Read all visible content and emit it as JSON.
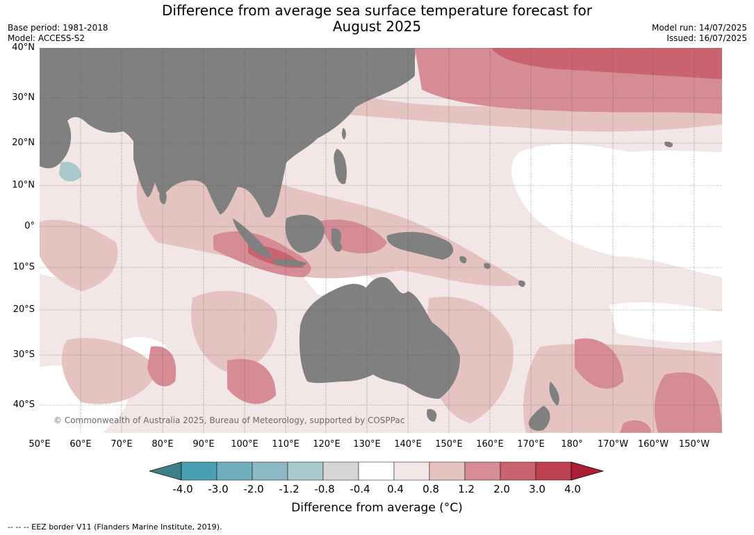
{
  "header": {
    "title_line1": "Difference from average sea surface temperature forecast for",
    "title_line2": "August 2025",
    "base_period": "Base period: 1981-2018",
    "model": "Model: ACCESS-S2",
    "model_run": "Model run: 14/07/2025",
    "issued": "Issued: 16/07/2025"
  },
  "map": {
    "lat_labels": [
      "40°N",
      "30°N",
      "20°N",
      "10°N",
      "0°",
      "10°S",
      "20°S",
      "30°S",
      "40°S"
    ],
    "lon_labels": [
      "50°E",
      "60°E",
      "70°E",
      "80°E",
      "90°E",
      "100°E",
      "110°E",
      "120°E",
      "130°E",
      "140°E",
      "150°E",
      "160°E",
      "170°E",
      "180°",
      "170°W",
      "160°W",
      "150°W"
    ],
    "copyright": "© Commonwealth of Australia 2025, Bureau of Meteorology, supported by COSPPac",
    "land_color": "#808080",
    "gridlines": true
  },
  "colorbar": {
    "title": "Difference from average (°C)",
    "tick_labels": [
      "-4.0",
      "-3.0",
      "-2.0",
      "-1.2",
      "-0.8",
      "-0.4",
      "0.4",
      "0.8",
      "1.2",
      "2.0",
      "3.0",
      "4.0"
    ],
    "colors": [
      "#3d7f89",
      "#4aa0b3",
      "#6fadbd",
      "#8cb8c4",
      "#a9c8cc",
      "#d6d6d6",
      "#ffffff",
      "#f3e6e6",
      "#e5c3c1",
      "#d68c94",
      "#c9636f",
      "#bd4150",
      "#ac1e35"
    ]
  },
  "footnote": "--  --  -- EEZ border V11 (Flanders Marine Institute, 2019)."
}
